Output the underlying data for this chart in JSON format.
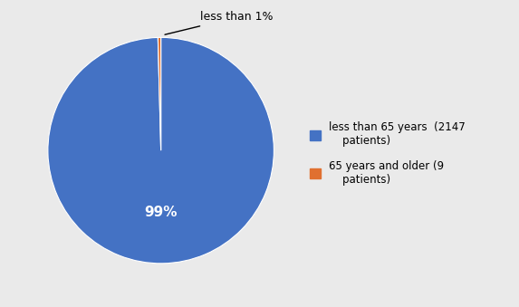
{
  "slices": [
    2147,
    9
  ],
  "colors": [
    "#4472C4",
    "#E07030"
  ],
  "labels": [
    "less than 65 years  (2147\n    patients)",
    "65 years and older (9\n    patients)"
  ],
  "pct_label": "99%",
  "annotation_text": "less than 1%",
  "background_color": "#EAEAEA",
  "startangle": 90,
  "figsize": [
    5.73,
    3.39
  ],
  "dpi": 100
}
